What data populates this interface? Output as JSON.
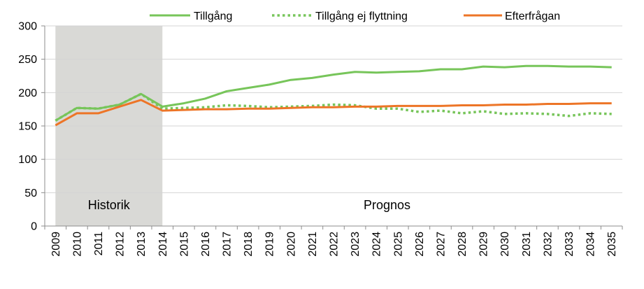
{
  "chart_data": {
    "type": "line",
    "x": [
      "2009",
      "2010",
      "2011",
      "2012",
      "2013",
      "2014",
      "2015",
      "2016",
      "2017",
      "2018",
      "2019",
      "2020",
      "2021",
      "2022",
      "2023",
      "2024",
      "2025",
      "2026",
      "2027",
      "2028",
      "2029",
      "2030",
      "2031",
      "2032",
      "2033",
      "2034",
      "2035"
    ],
    "ylim": [
      0,
      300
    ],
    "yticks": [
      0,
      50,
      100,
      150,
      200,
      250,
      300
    ],
    "grid": true,
    "legend_position": "top",
    "series": [
      {
        "name": "Tillgång",
        "color": "#77c55a",
        "style": "solid",
        "values": [
          158,
          177,
          176,
          182,
          198,
          179,
          184,
          191,
          202,
          207,
          212,
          219,
          222,
          227,
          231,
          230,
          231,
          232,
          235,
          235,
          239,
          238,
          240,
          240,
          239,
          239,
          238
        ]
      },
      {
        "name": "Tillgång ej flyttning",
        "color": "#77c55a",
        "style": "dotted",
        "values": [
          158,
          177,
          176,
          182,
          198,
          176,
          177,
          178,
          181,
          180,
          178,
          179,
          180,
          182,
          181,
          176,
          176,
          171,
          173,
          169,
          172,
          168,
          169,
          168,
          165,
          169,
          168
        ]
      },
      {
        "name": "Efterfrågan",
        "color": "#ed7527",
        "style": "solid",
        "values": [
          151,
          169,
          169,
          179,
          189,
          173,
          174,
          175,
          175,
          176,
          176,
          177,
          178,
          178,
          179,
          179,
          180,
          180,
          180,
          181,
          181,
          182,
          182,
          183,
          183,
          184,
          184
        ]
      }
    ],
    "regions": [
      {
        "label": "Historik",
        "from": "2009",
        "to": "2014",
        "shaded": true,
        "color": "#d9d9d6"
      },
      {
        "label": "Prognos",
        "from": "2014",
        "to": "2035",
        "shaded": false
      }
    ]
  }
}
